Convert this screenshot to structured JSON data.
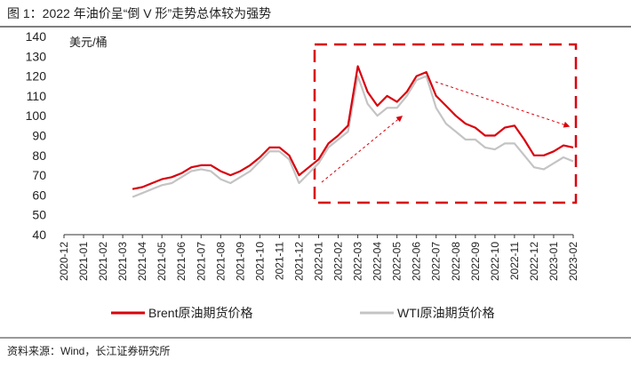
{
  "chart_data": {
    "type": "line",
    "title": "图 1：2022 年油价呈“倒 V 形”走势总体较为强势",
    "y_label": "美元/桶",
    "source": "资料来源：Wind，长江证券研究所",
    "categories": [
      "2020-12",
      null,
      "2021-01",
      null,
      "2021-02",
      null,
      "2021-03",
      null,
      "2021-04",
      null,
      "2021-05",
      null,
      "2021-06",
      null,
      "2021-07",
      null,
      "2021-08",
      null,
      "2021-09",
      null,
      "2021-10",
      null,
      "2021-11",
      null,
      "2021-12",
      null,
      "2022-01",
      null,
      "2022-02",
      null,
      "2022-03",
      null,
      "2022-04",
      null,
      "2022-05",
      null,
      "2022-06",
      null,
      "2022-07",
      null,
      "2022-08",
      null,
      "2022-09",
      null,
      "2022-10",
      null,
      "2022-11",
      null,
      "2022-12",
      null,
      "2023-01",
      null,
      "2023-02"
    ],
    "series": [
      {
        "name": "Brent原油期货价格",
        "color": "#d9000d",
        "values": [
          null,
          null,
          null,
          null,
          null,
          null,
          null,
          63,
          64,
          66,
          68,
          69,
          71,
          74,
          75,
          75,
          72,
          70,
          72,
          75,
          79,
          84,
          84,
          80,
          70,
          74,
          78,
          86,
          90,
          95,
          125,
          112,
          105,
          110,
          107,
          112,
          120,
          122,
          110,
          105,
          100,
          96,
          94,
          90,
          90,
          94,
          95,
          88,
          80,
          80,
          82,
          85,
          84
        ]
      },
      {
        "name": "WTI原油期货价格",
        "color": "#c4c4c4",
        "values": [
          null,
          null,
          null,
          null,
          null,
          null,
          null,
          59,
          61,
          63,
          65,
          66,
          69,
          72,
          73,
          72,
          68,
          66,
          69,
          72,
          77,
          82,
          82,
          78,
          66,
          71,
          76,
          84,
          88,
          92,
          120,
          106,
          100,
          104,
          104,
          110,
          118,
          120,
          104,
          96,
          92,
          88,
          88,
          84,
          83,
          86,
          86,
          80,
          74,
          73,
          76,
          79,
          77
        ]
      }
    ],
    "ylim": [
      40,
      140
    ],
    "yticks": [
      40,
      50,
      60,
      70,
      80,
      90,
      100,
      110,
      120,
      130,
      140
    ],
    "legend": "bottom"
  }
}
